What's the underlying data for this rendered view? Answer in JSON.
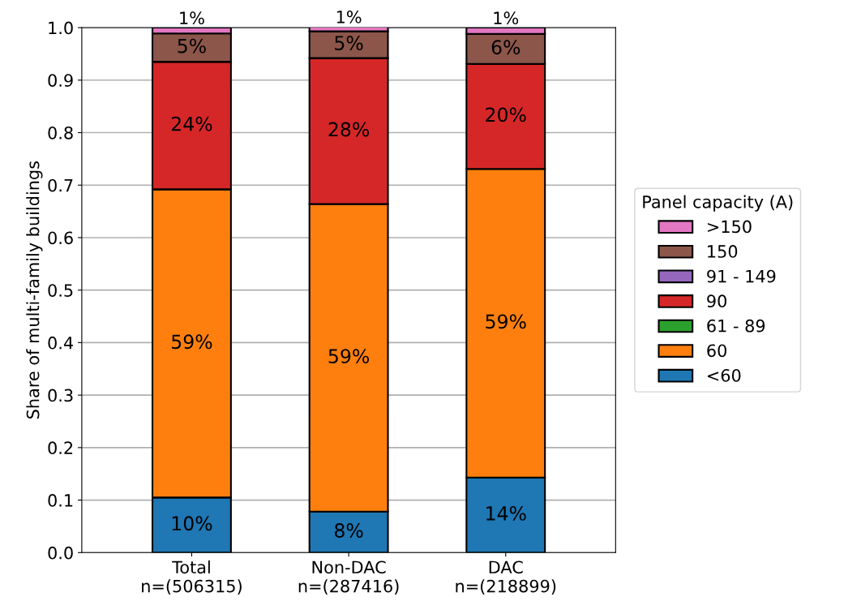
{
  "chart_data": {
    "type": "bar",
    "stacked": true,
    "ylabel": "Share of multi-family buildings",
    "legend_title": "Panel capacity (A)",
    "categories": [
      "Total\nn=(506315)",
      "Non-DAC\nn=(287416)",
      "DAC\nn=(218899)"
    ],
    "series": [
      {
        "name": "<60",
        "color": "#1f77b4",
        "values": [
          0.105,
          0.078,
          0.143
        ],
        "value_labels": [
          "10%",
          "8%",
          "14%"
        ]
      },
      {
        "name": "60",
        "color": "#ff7f0e",
        "values": [
          0.587,
          0.586,
          0.588
        ],
        "value_labels": [
          "59%",
          "59%",
          "59%"
        ]
      },
      {
        "name": "61 - 89",
        "color": "#2ca02c",
        "values": [
          0,
          0,
          0
        ],
        "value_labels": [
          null,
          null,
          null
        ]
      },
      {
        "name": "90",
        "color": "#d62728",
        "values": [
          0.243,
          0.278,
          0.2
        ],
        "value_labels": [
          "24%",
          "28%",
          "20%"
        ]
      },
      {
        "name": "91 - 149",
        "color": "#9467bd",
        "values": [
          0,
          0,
          0
        ],
        "value_labels": [
          null,
          null,
          null
        ]
      },
      {
        "name": "150",
        "color": "#8c564b",
        "values": [
          0.054,
          0.051,
          0.057
        ],
        "value_labels": [
          "5%",
          "5%",
          "6%"
        ]
      },
      {
        "name": ">150",
        "color": "#e377c2",
        "values": [
          0.011,
          0.009,
          0.012
        ],
        "value_labels": [
          "1%",
          "1%",
          "1%"
        ]
      }
    ],
    "ylim": [
      0,
      1
    ],
    "yticks": [
      {
        "value": 0,
        "label": "0.0"
      },
      0.1,
      0.2,
      0.3,
      0.4,
      0.5,
      0.6,
      0.7,
      0.8,
      0.9,
      {
        "value": 1,
        "label": "1.0"
      }
    ],
    "grid": "y",
    "legend": "right"
  }
}
